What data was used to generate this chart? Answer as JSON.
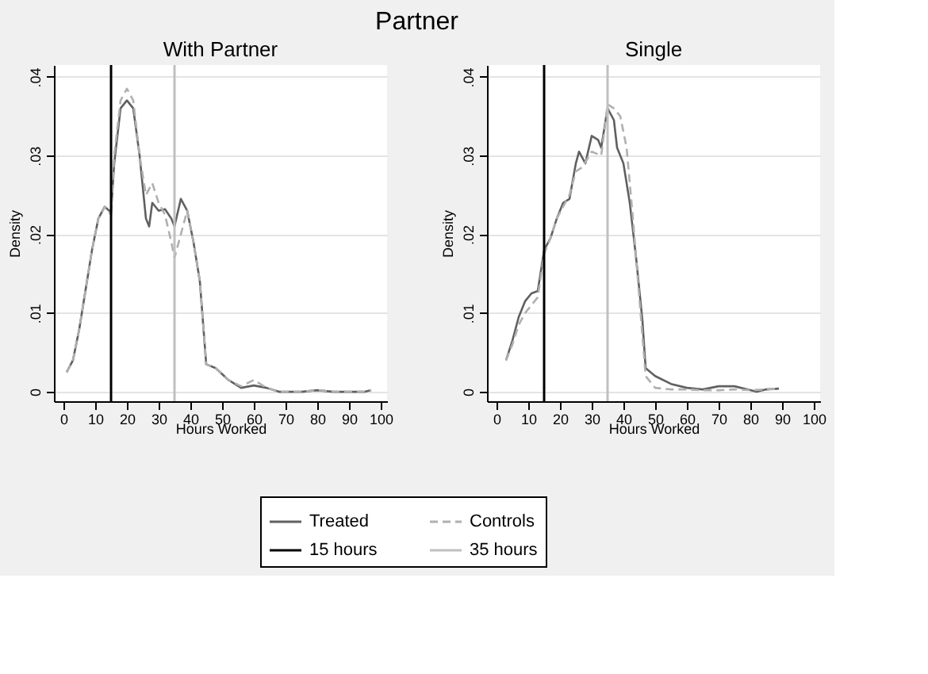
{
  "chart_data": [
    {
      "type": "line",
      "title": "Partner",
      "subtitle": "With Partner",
      "xlabel": "Hours Worked",
      "ylabel": "Density",
      "xlim": [
        -3,
        102
      ],
      "ylim": [
        -0.0012,
        0.0415
      ],
      "xticks": [
        0,
        10,
        20,
        30,
        40,
        50,
        60,
        70,
        80,
        90,
        100
      ],
      "yticks": [
        0,
        {
          "value": 0.01,
          "label": ".01"
        },
        {
          "value": 0.02,
          "label": ".02"
        },
        {
          "value": 0.03,
          "label": ".03"
        },
        {
          "value": 0.04,
          "label": ".04"
        }
      ],
      "grid": "y",
      "legend": "bottom",
      "line_style": "solid",
      "series": [
        {
          "name": "Treated",
          "color": "#606060",
          "x": [
            1,
            3,
            5,
            7,
            9,
            11,
            13,
            15,
            16,
            18,
            20,
            22,
            24,
            26,
            27,
            28,
            30,
            32,
            34,
            35,
            37,
            39,
            41,
            43,
            45,
            48,
            52,
            56,
            60,
            64,
            68,
            75,
            80,
            85,
            95,
            97
          ],
          "values": [
            0.0025,
            0.004,
            0.008,
            0.013,
            0.018,
            0.022,
            0.0235,
            0.0228,
            0.029,
            0.036,
            0.037,
            0.036,
            0.03,
            0.022,
            0.021,
            0.024,
            0.023,
            0.0232,
            0.022,
            0.021,
            0.0245,
            0.023,
            0.019,
            0.014,
            0.0035,
            0.003,
            0.0015,
            0.0005,
            0.0008,
            0.0005,
            0.0,
            0.0,
            0.0002,
            0.0,
            0.0,
            0.0002
          ]
        },
        {
          "name": "Controls",
          "color": "#b0b0b0",
          "line_style": "dashed",
          "x": [
            1,
            3,
            5,
            7,
            9,
            11,
            13,
            15,
            16,
            18,
            20,
            22,
            24,
            26,
            28,
            30,
            32,
            34,
            35,
            37,
            39,
            41,
            43,
            45,
            48,
            52,
            56,
            60,
            64,
            68,
            75,
            80,
            85,
            95,
            97
          ],
          "values": [
            0.0025,
            0.004,
            0.008,
            0.013,
            0.018,
            0.022,
            0.0235,
            0.0225,
            0.03,
            0.037,
            0.0385,
            0.037,
            0.03,
            0.025,
            0.0265,
            0.024,
            0.0225,
            0.019,
            0.017,
            0.02,
            0.023,
            0.019,
            0.014,
            0.0035,
            0.003,
            0.0015,
            0.0007,
            0.0015,
            0.0005,
            0.0,
            0.0,
            0.0002,
            0.0,
            0.0,
            0.0002
          ]
        }
      ],
      "ref_lines": [
        {
          "axis": "x",
          "value": 15,
          "label": "15 hours",
          "color": "#000000"
        },
        {
          "axis": "x",
          "value": 35,
          "label": "35 hours",
          "color": "#c0c0c0"
        }
      ]
    },
    {
      "type": "line",
      "subtitle": "Single",
      "xlabel": "Hours Worked",
      "ylabel": "Density",
      "xlim": [
        -3,
        102
      ],
      "ylim": [
        -0.0012,
        0.0415
      ],
      "xticks": [
        0,
        10,
        20,
        30,
        40,
        50,
        60,
        70,
        80,
        90,
        100
      ],
      "yticks": [
        0,
        {
          "value": 0.01,
          "label": ".01"
        },
        {
          "value": 0.02,
          "label": ".02"
        },
        {
          "value": 0.03,
          "label": ".03"
        },
        {
          "value": 0.04,
          "label": ".04"
        }
      ],
      "grid": "y",
      "legend": "bottom",
      "line_style": "solid",
      "series": [
        {
          "name": "Treated",
          "color": "#606060",
          "x": [
            3,
            5,
            7,
            9,
            11,
            13,
            15,
            17,
            19,
            21,
            23,
            25,
            26,
            28,
            30,
            32,
            33,
            35,
            37,
            38,
            40,
            42,
            44,
            46,
            47,
            50,
            55,
            60,
            65,
            70,
            75,
            80,
            82,
            85,
            89
          ],
          "values": [
            0.004,
            0.0065,
            0.0095,
            0.0115,
            0.0125,
            0.0128,
            0.018,
            0.0195,
            0.022,
            0.024,
            0.0245,
            0.029,
            0.0305,
            0.029,
            0.0325,
            0.032,
            0.031,
            0.036,
            0.0345,
            0.031,
            0.029,
            0.024,
            0.017,
            0.009,
            0.003,
            0.002,
            0.001,
            0.0005,
            0.0003,
            0.0007,
            0.0007,
            0.0002,
            0.0,
            0.0003,
            0.0004
          ]
        },
        {
          "name": "Controls",
          "color": "#b0b0b0",
          "line_style": "dashed",
          "x": [
            3,
            5,
            7,
            9,
            11,
            13,
            15,
            17,
            19,
            21,
            23,
            25,
            27,
            30,
            33,
            35,
            37,
            39,
            41,
            43,
            45,
            47,
            50,
            55,
            60,
            65,
            70,
            75,
            80,
            85,
            89
          ],
          "values": [
            0.004,
            0.006,
            0.0085,
            0.01,
            0.011,
            0.012,
            0.0175,
            0.0195,
            0.022,
            0.0235,
            0.025,
            0.028,
            0.0285,
            0.0305,
            0.03,
            0.0365,
            0.036,
            0.035,
            0.031,
            0.022,
            0.012,
            0.002,
            0.0005,
            0.0003,
            0.0003,
            0.0002,
            0.0002,
            0.0003,
            0.0002,
            0.0003,
            0.0004
          ]
        }
      ],
      "ref_lines": [
        {
          "axis": "x",
          "value": 15,
          "color": "#000000"
        },
        {
          "axis": "x",
          "value": 35,
          "color": "#c0c0c0"
        }
      ]
    }
  ]
}
